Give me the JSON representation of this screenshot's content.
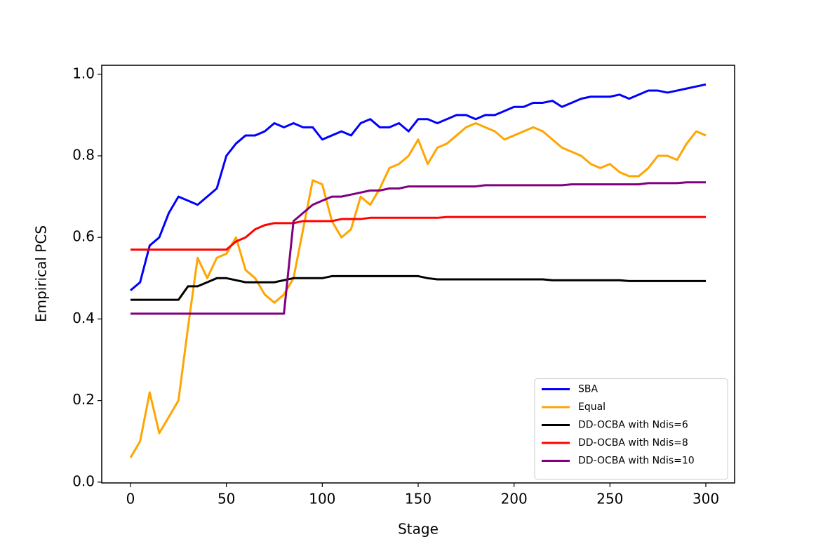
{
  "chart_data": {
    "type": "line",
    "xlabel": "Stage",
    "ylabel": "Empirical PCS",
    "xlim": [
      -15,
      315
    ],
    "ylim": [
      -0.002,
      1.022
    ],
    "xticks": [
      0,
      50,
      100,
      150,
      200,
      250,
      300
    ],
    "yticks": [
      {
        "value": 0,
        "label": "0.0"
      },
      {
        "value": 0.2,
        "label": "0.2"
      },
      {
        "value": 0.4,
        "label": "0.4"
      },
      {
        "value": 0.6,
        "label": "0.6"
      },
      {
        "value": 0.8,
        "label": "0.8"
      },
      {
        "value": 1,
        "label": "1.0"
      }
    ],
    "legend": "lower right",
    "x": [
      0,
      5,
      10,
      15,
      20,
      25,
      30,
      35,
      40,
      45,
      50,
      55,
      60,
      65,
      70,
      75,
      80,
      85,
      90,
      95,
      100,
      105,
      110,
      115,
      120,
      125,
      130,
      135,
      140,
      145,
      150,
      155,
      160,
      165,
      170,
      175,
      180,
      185,
      190,
      195,
      200,
      205,
      210,
      215,
      220,
      225,
      230,
      235,
      240,
      245,
      250,
      255,
      260,
      265,
      270,
      275,
      280,
      285,
      290,
      295,
      300
    ],
    "series": [
      {
        "name": "SBA",
        "color": "#0000ff",
        "values": [
          0.47,
          0.49,
          0.58,
          0.6,
          0.66,
          0.7,
          0.69,
          0.68,
          0.7,
          0.72,
          0.8,
          0.83,
          0.85,
          0.85,
          0.86,
          0.88,
          0.87,
          0.88,
          0.87,
          0.87,
          0.84,
          0.85,
          0.86,
          0.85,
          0.88,
          0.89,
          0.87,
          0.87,
          0.88,
          0.86,
          0.89,
          0.89,
          0.88,
          0.89,
          0.9,
          0.9,
          0.89,
          0.9,
          0.9,
          0.91,
          0.92,
          0.92,
          0.93,
          0.93,
          0.935,
          0.92,
          0.93,
          0.94,
          0.945,
          0.945,
          0.945,
          0.95,
          0.94,
          0.95,
          0.96,
          0.96,
          0.955,
          0.96,
          0.965,
          0.97,
          0.975
        ]
      },
      {
        "name": "Equal",
        "color": "#ffa500",
        "values": [
          0.06,
          0.1,
          0.22,
          0.12,
          0.16,
          0.2,
          0.38,
          0.55,
          0.5,
          0.55,
          0.56,
          0.6,
          0.52,
          0.5,
          0.46,
          0.44,
          0.46,
          0.5,
          0.62,
          0.74,
          0.73,
          0.64,
          0.6,
          0.62,
          0.7,
          0.68,
          0.72,
          0.77,
          0.78,
          0.8,
          0.84,
          0.78,
          0.82,
          0.83,
          0.85,
          0.87,
          0.88,
          0.87,
          0.86,
          0.84,
          0.85,
          0.86,
          0.87,
          0.86,
          0.84,
          0.82,
          0.81,
          0.8,
          0.78,
          0.77,
          0.78,
          0.76,
          0.75,
          0.75,
          0.77,
          0.8,
          0.8,
          0.79,
          0.83,
          0.86,
          0.85
        ]
      },
      {
        "name": "DD-OCBA with Ndis=6",
        "color": "#000000",
        "values": [
          0.447,
          0.447,
          0.447,
          0.447,
          0.447,
          0.447,
          0.48,
          0.48,
          0.49,
          0.5,
          0.5,
          0.495,
          0.49,
          0.49,
          0.49,
          0.49,
          0.495,
          0.5,
          0.5,
          0.5,
          0.5,
          0.505,
          0.505,
          0.505,
          0.505,
          0.505,
          0.505,
          0.505,
          0.505,
          0.505,
          0.505,
          0.5,
          0.497,
          0.497,
          0.497,
          0.497,
          0.497,
          0.497,
          0.497,
          0.497,
          0.497,
          0.497,
          0.497,
          0.497,
          0.495,
          0.495,
          0.495,
          0.495,
          0.495,
          0.495,
          0.495,
          0.495,
          0.493,
          0.493,
          0.493,
          0.493,
          0.493,
          0.493,
          0.493,
          0.493,
          0.493
        ]
      },
      {
        "name": "DD-OCBA with Ndis=8",
        "color": "#ff0000",
        "values": [
          0.57,
          0.57,
          0.57,
          0.57,
          0.57,
          0.57,
          0.57,
          0.57,
          0.57,
          0.57,
          0.57,
          0.59,
          0.6,
          0.62,
          0.63,
          0.635,
          0.635,
          0.635,
          0.64,
          0.64,
          0.64,
          0.64,
          0.645,
          0.645,
          0.645,
          0.648,
          0.648,
          0.648,
          0.648,
          0.648,
          0.648,
          0.648,
          0.648,
          0.65,
          0.65,
          0.65,
          0.65,
          0.65,
          0.65,
          0.65,
          0.65,
          0.65,
          0.65,
          0.65,
          0.65,
          0.65,
          0.65,
          0.65,
          0.65,
          0.65,
          0.65,
          0.65,
          0.65,
          0.65,
          0.65,
          0.65,
          0.65,
          0.65,
          0.65,
          0.65,
          0.65
        ]
      },
      {
        "name": "DD-OCBA with Ndis=10",
        "color": "#800080",
        "values": [
          0.413,
          0.413,
          0.413,
          0.413,
          0.413,
          0.413,
          0.413,
          0.413,
          0.413,
          0.413,
          0.413,
          0.413,
          0.413,
          0.413,
          0.413,
          0.413,
          0.413,
          0.64,
          0.66,
          0.68,
          0.69,
          0.7,
          0.7,
          0.705,
          0.71,
          0.715,
          0.715,
          0.72,
          0.72,
          0.725,
          0.725,
          0.725,
          0.725,
          0.725,
          0.725,
          0.725,
          0.725,
          0.728,
          0.728,
          0.728,
          0.728,
          0.728,
          0.728,
          0.728,
          0.728,
          0.728,
          0.73,
          0.73,
          0.73,
          0.73,
          0.73,
          0.73,
          0.73,
          0.73,
          0.733,
          0.733,
          0.733,
          0.733,
          0.735,
          0.735,
          0.735
        ]
      }
    ]
  }
}
